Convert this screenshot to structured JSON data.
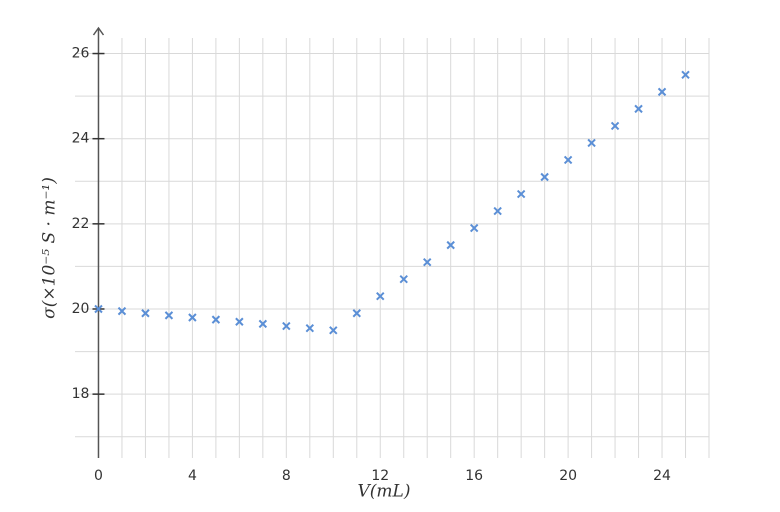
{
  "chart_data": {
    "type": "scatter",
    "x_label": "V(mL)",
    "y_label": "σ(×10⁻⁵ S · m⁻¹)",
    "xlim": [
      -1,
      26
    ],
    "ylim": [
      16.5,
      26.6
    ],
    "xticks": [
      0,
      4,
      8,
      12,
      16,
      20,
      24
    ],
    "yticks": [
      18,
      20,
      22,
      24,
      26
    ],
    "xgrid": [
      0,
      1,
      2,
      3,
      4,
      5,
      6,
      7,
      8,
      9,
      10,
      11,
      12,
      13,
      14,
      15,
      16,
      17,
      18,
      19,
      20,
      21,
      22,
      23,
      24,
      25,
      26
    ],
    "ygrid": [
      17,
      18,
      19,
      20,
      21,
      22,
      23,
      24,
      25,
      26
    ],
    "color": "#5b8fd6",
    "x": [
      0,
      1,
      2,
      3,
      4,
      5,
      6,
      7,
      8,
      9,
      10,
      11,
      12,
      13,
      14,
      15,
      16,
      17,
      18,
      19,
      20,
      21,
      22,
      23,
      24,
      25
    ],
    "values": [
      20.0,
      19.95,
      19.9,
      19.85,
      19.8,
      19.75,
      19.7,
      19.65,
      19.6,
      19.55,
      19.5,
      19.9,
      20.3,
      20.7,
      21.1,
      21.5,
      21.9,
      22.3,
      22.7,
      23.1,
      23.5,
      23.9,
      24.3,
      24.7,
      25.1,
      25.5
    ]
  }
}
